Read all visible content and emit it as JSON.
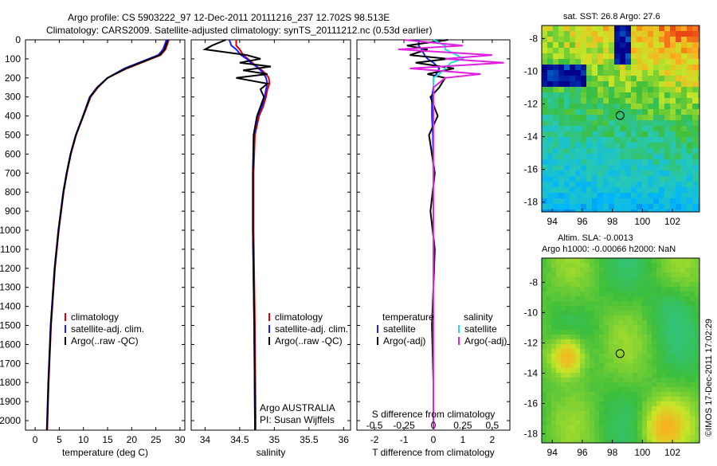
{
  "header": {
    "line1": "Argo profile: CS 5903222_97 12-Dec-2011 20111216_237 12.702S 98.513E",
    "line2": "Climatology: CARS2009. Satellite-adjusted climatology: synTS_20111212.nc (0.53d earlier)"
  },
  "colors": {
    "clim": "#e00000",
    "sat": "#1a1aff",
    "argo": "#000000",
    "sat_s": "#22e0e0",
    "argo_s": "#e020e0"
  },
  "chart_data": [
    {
      "id": "temp",
      "type": "line",
      "xlabel": "temperature (deg C)",
      "ylabel": "",
      "xlim": [
        -2,
        31
      ],
      "ylim": [
        2050,
        0
      ],
      "xticks": [
        "0",
        "5",
        "10",
        "15",
        "20",
        "25",
        "30"
      ],
      "yticks": [
        "0",
        "100",
        "200",
        "300",
        "400",
        "500",
        "600",
        "700",
        "800",
        "900",
        "1000",
        "1100",
        "1200",
        "1300",
        "1400",
        "1500",
        "1600",
        "1700",
        "1800",
        "1900",
        "2000"
      ],
      "legend": [
        "climatology",
        "satellite-adj. clim.",
        "Argo(..raw -QC)"
      ],
      "depth": [
        0,
        50,
        80,
        100,
        150,
        200,
        250,
        300,
        400,
        500,
        600,
        700,
        800,
        1000,
        1200,
        1500,
        1800,
        2050
      ],
      "series": [
        {
          "name": "climatology",
          "values": [
            27.7,
            27.0,
            26.0,
            24.0,
            19.0,
            15.0,
            13.0,
            11.5,
            10.0,
            8.5,
            7.4,
            6.6,
            5.9,
            4.9,
            4.1,
            3.3,
            2.8,
            2.5
          ]
        },
        {
          "name": "satellite-adj. clim.",
          "values": [
            27.2,
            26.5,
            25.5,
            23.5,
            18.5,
            15.0,
            12.8,
            11.3,
            9.9,
            8.4,
            7.3,
            6.5,
            5.8,
            4.8,
            4.0,
            3.2,
            2.7,
            2.4
          ]
        },
        {
          "name": "Argo(..raw -QC)",
          "values": [
            27.5,
            26.8,
            25.8,
            23.8,
            18.8,
            15.0,
            12.9,
            11.4,
            9.95,
            8.45,
            7.35,
            6.55,
            5.85,
            4.85,
            4.05,
            3.25,
            2.75,
            2.45
          ]
        }
      ]
    },
    {
      "id": "sal",
      "type": "line",
      "xlabel": "salinity",
      "xlim": [
        33.8,
        36.1
      ],
      "ylim": [
        2050,
        0
      ],
      "xticks": [
        "34",
        "34.5",
        "35",
        "35.5",
        "36"
      ],
      "legend": [
        "climatology",
        "satellite-adj. clim.",
        "Argo(..raw -QC)"
      ],
      "annotation": [
        "Argo AUSTRALIA",
        "PI: Susan Wijffels"
      ],
      "depth": [
        0,
        30,
        50,
        80,
        100,
        120,
        140,
        160,
        180,
        200,
        230,
        260,
        300,
        350,
        400,
        500,
        700,
        1000,
        1500,
        2000,
        2050
      ],
      "series": [
        {
          "name": "climatology",
          "values": [
            34.45,
            34.45,
            34.5,
            34.55,
            34.62,
            34.68,
            34.75,
            34.82,
            34.88,
            34.92,
            34.93,
            34.9,
            34.88,
            34.84,
            34.78,
            34.72,
            34.7,
            34.7,
            34.72,
            34.73,
            34.73
          ]
        },
        {
          "name": "satellite-adj. clim.",
          "values": [
            34.35,
            34.38,
            34.45,
            34.52,
            34.6,
            34.66,
            34.74,
            34.8,
            34.85,
            34.88,
            34.9,
            34.88,
            34.86,
            34.82,
            34.76,
            34.71,
            34.69,
            34.69,
            34.71,
            34.72,
            34.72
          ]
        },
        {
          "name": "Argo(..raw -QC)",
          "values": [
            34.3,
            34.1,
            34.0,
            34.6,
            34.8,
            34.5,
            34.95,
            34.55,
            34.9,
            34.45,
            34.9,
            34.8,
            34.85,
            34.8,
            34.75,
            34.7,
            34.69,
            34.69,
            34.71,
            34.72,
            34.72
          ]
        }
      ]
    },
    {
      "id": "diff",
      "type": "line",
      "xlabel": "T difference from climatology",
      "xlabel_top": "S difference from climatology",
      "xlim": [
        -2.6,
        2.6
      ],
      "ylim": [
        2050,
        0
      ],
      "xticks": [
        "-2",
        "-1",
        "0",
        "1",
        "2"
      ],
      "xticks_top": [
        "-0.5",
        "-0.25",
        "0",
        "0.25",
        "0.5"
      ],
      "legend_left_title": "temperature",
      "legend_right_title": "salinity",
      "legend": [
        "satellite",
        "Argo(-adj)",
        "satellite",
        "Argo(-adj)"
      ],
      "depth": [
        0,
        30,
        50,
        80,
        100,
        120,
        150,
        180,
        200,
        250,
        300,
        400,
        500,
        700,
        900,
        1100,
        1300,
        1500,
        1800,
        2050
      ],
      "series": [
        {
          "name": "T satellite",
          "values": [
            -0.5,
            -0.5,
            -0.4,
            -0.3,
            -0.2,
            0.0,
            0.2,
            0.1,
            0.0,
            0.0,
            -0.05,
            -0.05,
            -0.02,
            0.0,
            0.0,
            0.0,
            0.0,
            0.0,
            0.0,
            0.0
          ]
        },
        {
          "name": "T Argo(-adj)",
          "values": [
            0.5,
            -0.9,
            -0.2,
            -0.8,
            0.5,
            -0.6,
            0.7,
            -0.2,
            0.4,
            0.2,
            -0.1,
            0.15,
            -0.15,
            0.05,
            -0.1,
            0.05,
            0.0,
            -0.05,
            0.0,
            0.0
          ]
        },
        {
          "name": "S satellite",
          "values": [
            0.0,
            0.1,
            0.1,
            0.2,
            0.25,
            0.15,
            0.1,
            0.05,
            0.0,
            0.0,
            0.0,
            0.0,
            0.0,
            0.0,
            0.0,
            0.0,
            0.0,
            0.0,
            0.0,
            0.0
          ]
        },
        {
          "name": "S Argo(-adj)",
          "values": [
            -0.25,
            0.25,
            -0.3,
            0.5,
            0.1,
            0.6,
            -0.2,
            0.4,
            0.1,
            0.0,
            0.0,
            0.0,
            0.0,
            0.0,
            0.0,
            0.0,
            0.0,
            0.0,
            0.0,
            0.0
          ]
        }
      ]
    },
    {
      "id": "sst_map",
      "type": "heatmap",
      "title": "sat. SST: 26.8 Argo: 27.6",
      "xlim": [
        93.3,
        103.8
      ],
      "ylim": [
        -18.6,
        -7.2
      ],
      "xticks": [
        "94",
        "96",
        "98",
        "100",
        "102"
      ],
      "yticks": [
        "-8",
        "-10",
        "-12",
        "-14",
        "-16",
        "-18"
      ],
      "marker": {
        "lon": 98.513,
        "lat": -12.702
      }
    },
    {
      "id": "sla_map",
      "type": "heatmap",
      "title": "Altim. SLA: -0.0013",
      "subtitle": "Argo h1000: -0.00066 h2000: NaN",
      "xlim": [
        93.3,
        103.8
      ],
      "ylim": [
        -18.6,
        -6.4
      ],
      "xticks": [
        "94",
        "96",
        "98",
        "100",
        "102"
      ],
      "yticks": [
        "-8",
        "-10",
        "-12",
        "-14",
        "-16",
        "-18"
      ],
      "marker": {
        "lon": 98.513,
        "lat": -12.702
      }
    }
  ],
  "footer": {
    "stamp": "©IMOS 17-Dec-2011 17:02:29"
  }
}
